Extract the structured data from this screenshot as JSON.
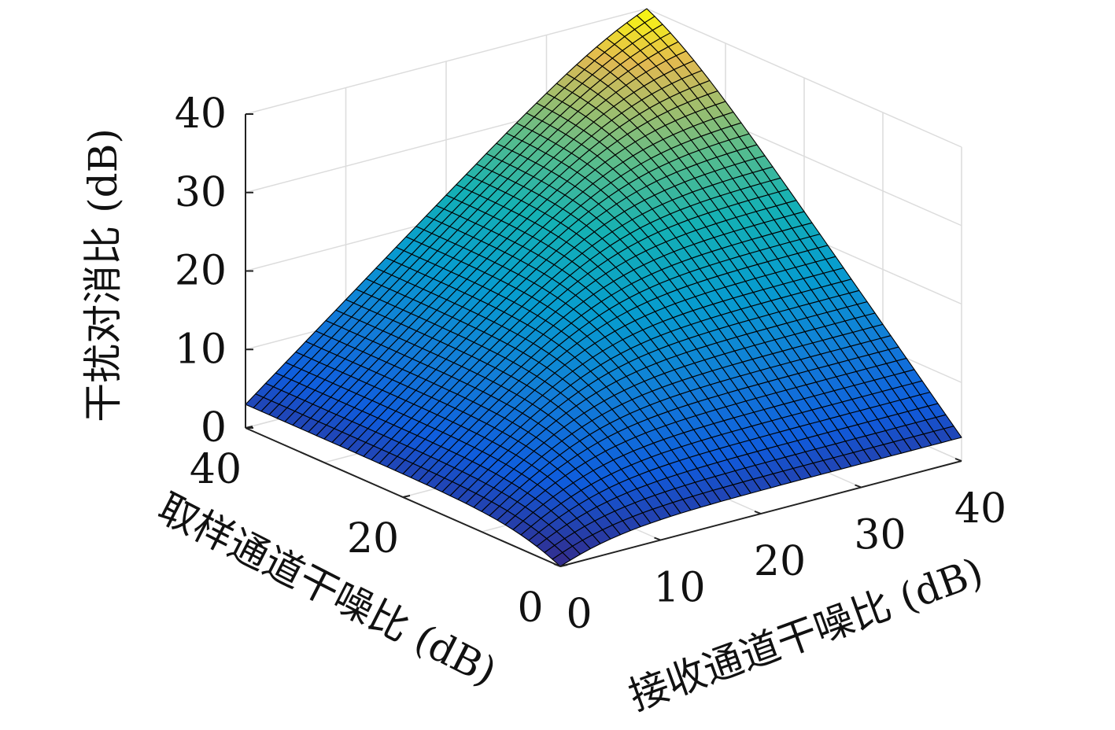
{
  "chart_data": {
    "type": "surface",
    "x_axis": {
      "label": "接收通道干噪比 (dB)",
      "ticks": [
        0,
        10,
        20,
        30,
        40
      ],
      "range": [
        0,
        40
      ]
    },
    "y_axis": {
      "label": "取样通道干噪比 (dB)",
      "ticks": [
        0,
        20,
        40
      ],
      "range": [
        0,
        40
      ]
    },
    "z_axis": {
      "label": "干扰对消比 (dB)",
      "ticks": [
        0,
        10,
        20,
        30,
        40
      ],
      "range": [
        0,
        40
      ]
    },
    "surface": {
      "formula": "z = -10*log10(10^(-x/10) + 10^(-y/10)) clipped at 0",
      "grid_points": 41,
      "corner_values": [
        {
          "x": 0,
          "y": 0,
          "z": 0
        },
        {
          "x": 40,
          "y": 0,
          "z": 0
        },
        {
          "x": 0,
          "y": 40,
          "z": 0
        },
        {
          "x": 40,
          "y": 40,
          "z": 37
        }
      ],
      "colormap": "parula",
      "edge_color": "#000000"
    },
    "grid": true
  }
}
